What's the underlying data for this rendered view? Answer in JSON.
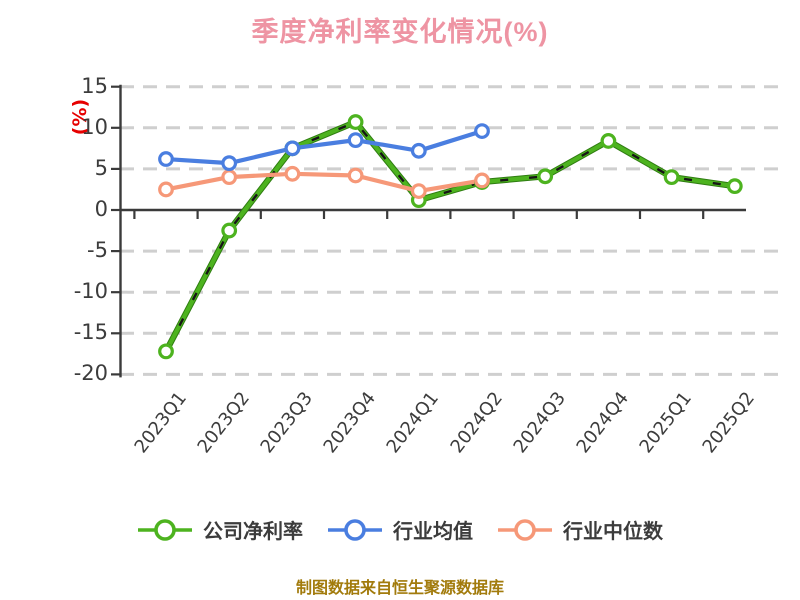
{
  "title": "季度净利率变化情况(%)",
  "y_axis_label": "(%)",
  "footer": "制图数据来自恒生聚源数据库",
  "colors": {
    "title_pink": "#ee94a3",
    "axis_label_red": "#e60000",
    "tick_text": "#3c3c3c",
    "gridline": "#cfcfcf",
    "axis_line": "#3a3a3a",
    "footer_gold": "#a27b0c",
    "company_green": "#4db31f",
    "company_green_edge": "#2f7d11",
    "overlay_black_dash": "#161616",
    "industry_avg_blue": "#4a7ee0",
    "industry_median_orange": "#f69878",
    "marker_fill": "#ffffff"
  },
  "chart_data": {
    "type": "line",
    "title": "季度净利率变化情况(%)",
    "xlabel": "",
    "ylabel": "(%)",
    "ylim": [
      -20,
      15
    ],
    "yticks": [
      15,
      10,
      5,
      0,
      -5,
      -10,
      -15,
      -20
    ],
    "grid": "horizontal dashed, solid dark line at y=0",
    "legend_position": "bottom",
    "marker": "circle, white fill, colored ring",
    "categories": [
      "2023Q1",
      "2023Q2",
      "2023Q3",
      "2023Q4",
      "2024Q1",
      "2024Q2",
      "2024Q3",
      "2024Q4",
      "2025Q1",
      "2025Q2"
    ],
    "series": [
      {
        "name": "公司净利率",
        "color": "#4db31f",
        "line_style": "solid green with black dashed overlay",
        "values": [
          -17.2,
          -2.5,
          7.5,
          10.7,
          1.2,
          3.4,
          4.1,
          8.4,
          4.0,
          2.9
        ]
      },
      {
        "name": "行业均值",
        "color": "#4a7ee0",
        "line_style": "solid",
        "values": [
          6.2,
          5.7,
          7.5,
          8.5,
          7.2,
          9.6,
          null,
          null,
          null,
          null
        ]
      },
      {
        "name": "行业中位数",
        "color": "#f69878",
        "line_style": "solid",
        "values": [
          2.5,
          4.0,
          4.4,
          4.2,
          2.3,
          3.6,
          null,
          null,
          null,
          null
        ]
      }
    ]
  }
}
